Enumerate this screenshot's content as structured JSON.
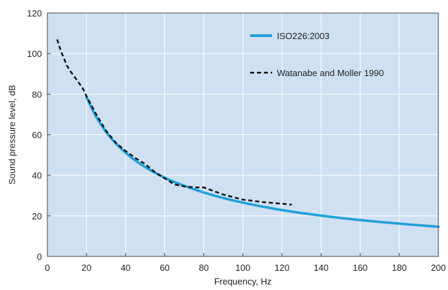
{
  "chart_data": {
    "type": "line",
    "title": "",
    "xlabel": "Frequency, Hz",
    "ylabel": "Sound pressure level, dB",
    "xlim": [
      0,
      200
    ],
    "ylim": [
      0,
      120
    ],
    "xticks": [
      0,
      20,
      40,
      60,
      80,
      100,
      120,
      140,
      160,
      180,
      200
    ],
    "yticks": [
      0,
      20,
      40,
      60,
      80,
      100,
      120
    ],
    "grid": true,
    "legend_position": "top-right",
    "plot_background": "#cfe0f2",
    "grid_color": "#ffffff",
    "series": [
      {
        "name": "ISO226:2003",
        "style": "solid",
        "color": "#1ea0d8",
        "x": [
          20,
          25,
          31.5,
          40,
          50,
          63,
          80,
          100,
          125,
          160,
          200
        ],
        "y": [
          78.5,
          68.7,
          59.5,
          51.1,
          44.0,
          37.5,
          31.5,
          26.5,
          22.1,
          17.9,
          14.6
        ]
      },
      {
        "name": "Watanabe and Moller 1990",
        "style": "dashed",
        "color": "#111111",
        "x": [
          5,
          7,
          10,
          12,
          15,
          18,
          20,
          25,
          30,
          35,
          40,
          45,
          50,
          55,
          60,
          65,
          70,
          75,
          80,
          90,
          100,
          110,
          120,
          125
        ],
        "y": [
          107,
          101,
          94,
          91,
          87,
          83,
          79,
          70,
          62,
          56,
          52,
          48.5,
          45.5,
          41.5,
          38.5,
          35.5,
          34.5,
          34,
          34,
          30.5,
          28,
          26.8,
          26,
          25.5
        ]
      }
    ]
  }
}
